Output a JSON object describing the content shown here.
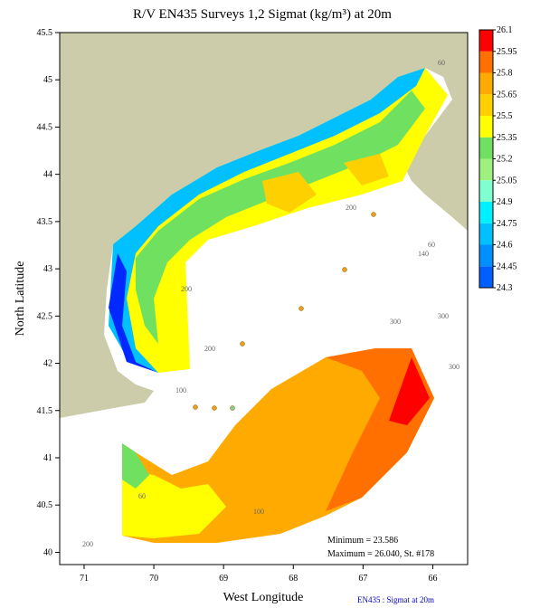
{
  "chart_data": {
    "type": "contour-map",
    "title": "R/V EN435 Surveys 1,2 Sigmat (kg/m³) at 20m",
    "x_label": "West Longitude",
    "y_label": "North Latitude",
    "xlim": [
      71.35,
      65.5
    ],
    "xticks": [
      71,
      70,
      69,
      68,
      67,
      66
    ],
    "ylim": [
      39.87,
      45.5
    ],
    "yticks": [
      40,
      40.5,
      41,
      41.5,
      42,
      42.5,
      43,
      43.5,
      44,
      44.5,
      45,
      45.5
    ],
    "colorbar": {
      "levels": [
        24.3,
        24.45,
        24.6,
        24.75,
        24.9,
        25.05,
        25.2,
        25.35,
        25.5,
        25.65,
        25.8,
        25.95,
        26.1
      ],
      "colors": [
        "#0028ff",
        "#0060ff",
        "#0090ff",
        "#00c0ff",
        "#00f0ff",
        "#80ffd0",
        "#a0f080",
        "#70e060",
        "#ffff00",
        "#ffd000",
        "#ffaa00",
        "#ff7000",
        "#ff0000"
      ]
    },
    "contour_labels": [
      "60",
      "200",
      "60",
      "140",
      "200",
      "300",
      "300",
      "200",
      "300",
      "100",
      "60",
      "100",
      "200"
    ],
    "annotations": [
      "Minimum = 23.586",
      "Maximum = 26.040, St. #178"
    ],
    "footer": "EN435 : Sigmat at 20m"
  }
}
